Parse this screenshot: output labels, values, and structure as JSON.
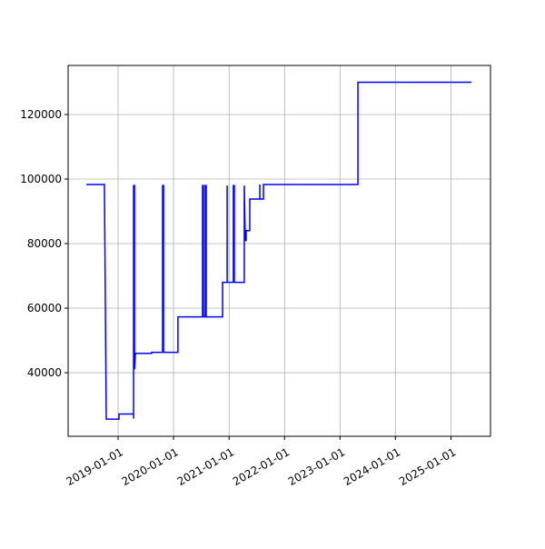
{
  "chart_data": {
    "type": "line",
    "grid": true,
    "x": [
      "2018-06-06",
      "2018-10-03",
      "2018-10-15",
      "2019-01-07",
      "2019-01-07",
      "2019-04-13",
      "2019-04-13",
      "2019-04-13",
      "2019-04-19",
      "2019-04-19",
      "2019-04-25",
      "2019-08-10",
      "2019-08-10",
      "2019-10-21",
      "2019-10-21",
      "2019-10-27",
      "2019-10-27",
      "2020-01-30",
      "2020-01-30",
      "2020-07-10",
      "2020-07-10",
      "2020-07-16",
      "2020-07-16",
      "2020-07-28",
      "2020-07-28",
      "2020-08-03",
      "2020-08-03",
      "2020-11-19",
      "2020-11-19",
      "2020-12-19",
      "2020-12-19",
      "2020-12-19",
      "2021-01-29",
      "2021-01-29",
      "2021-02-04",
      "2021-02-04",
      "2021-04-11",
      "2021-04-11",
      "2021-04-17",
      "2021-04-23",
      "2021-04-23",
      "2021-05-17",
      "2021-05-17",
      "2021-07-22",
      "2021-07-22",
      "2021-07-22",
      "2021-08-15",
      "2021-08-15",
      "2023-04-29",
      "2023-04-29",
      "2025-05-15"
    ],
    "series": [
      {
        "color": "#0000ff",
        "values": [
          98300,
          98300,
          25600,
          25600,
          27200,
          27200,
          25800,
          98000,
          98000,
          41000,
          46000,
          46000,
          46300,
          46300,
          98000,
          98000,
          46300,
          46300,
          57300,
          57300,
          98000,
          98000,
          57300,
          57300,
          98000,
          98000,
          57300,
          57300,
          68000,
          68000,
          98000,
          68000,
          68000,
          98000,
          98000,
          68000,
          68000,
          98000,
          81000,
          81000,
          84000,
          84000,
          93800,
          93800,
          98300,
          93800,
          93800,
          98300,
          98300,
          130000,
          130000
        ]
      }
    ],
    "xlim": [
      "2018-02-06",
      "2025-09-18"
    ],
    "xticks": [
      "2019-01-01",
      "2020-01-01",
      "2021-01-01",
      "2022-01-01",
      "2023-01-01",
      "2024-01-01",
      "2025-01-01"
    ],
    "ylim": [
      20300,
      135200
    ],
    "yticks": [
      40000,
      60000,
      80000,
      100000,
      120000
    ]
  }
}
